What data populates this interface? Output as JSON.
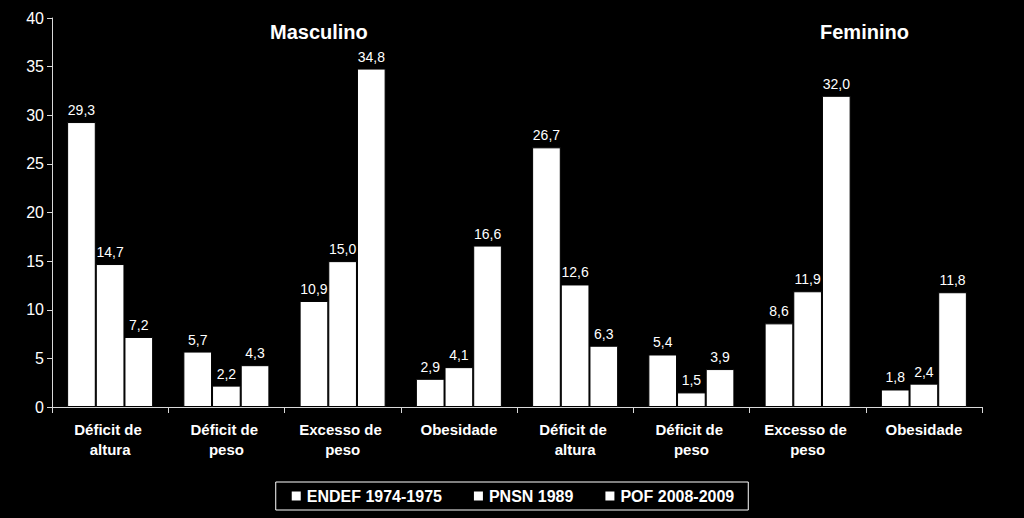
{
  "chart_data": {
    "type": "bar",
    "annotations": [
      "Masculino",
      "Feminino"
    ],
    "categories": [
      "Déficit de altura",
      "Déficit de peso",
      "Excesso de peso",
      "Obesidade",
      "Déficit de altura",
      "Déficit de peso",
      "Excesso de peso",
      "Obesidade"
    ],
    "series": [
      {
        "name": "ENDEF 1974-1975",
        "color": "#ffffff",
        "values": [
          29.3,
          5.7,
          10.9,
          2.9,
          26.7,
          5.4,
          8.6,
          1.8
        ],
        "value_labels": [
          "29,3",
          "5,7",
          "10,9",
          "2,9",
          "26,7",
          "5,4",
          "8,6",
          "1,8"
        ]
      },
      {
        "name": "PNSN 1989",
        "color": "#ffffff",
        "values": [
          14.7,
          2.2,
          15.0,
          4.1,
          12.6,
          1.5,
          11.9,
          2.4
        ],
        "value_labels": [
          "14,7",
          "2,2",
          "15,0",
          "4,1",
          "12,6",
          "1,5",
          "11,9",
          "2,4"
        ]
      },
      {
        "name": "POF 2008-2009",
        "color": "#ffffff",
        "values": [
          7.2,
          4.3,
          34.8,
          16.6,
          6.3,
          3.9,
          32.0,
          11.8
        ],
        "value_labels": [
          "7,2",
          "4,3",
          "34,8",
          "16,6",
          "6,3",
          "3,9",
          "32,0",
          "11,8"
        ]
      }
    ],
    "ylim": [
      0,
      40
    ],
    "yticks": [
      0,
      5,
      10,
      15,
      20,
      25,
      30,
      35,
      40
    ],
    "grid": false,
    "legend": "bottom",
    "data_labels": true
  }
}
